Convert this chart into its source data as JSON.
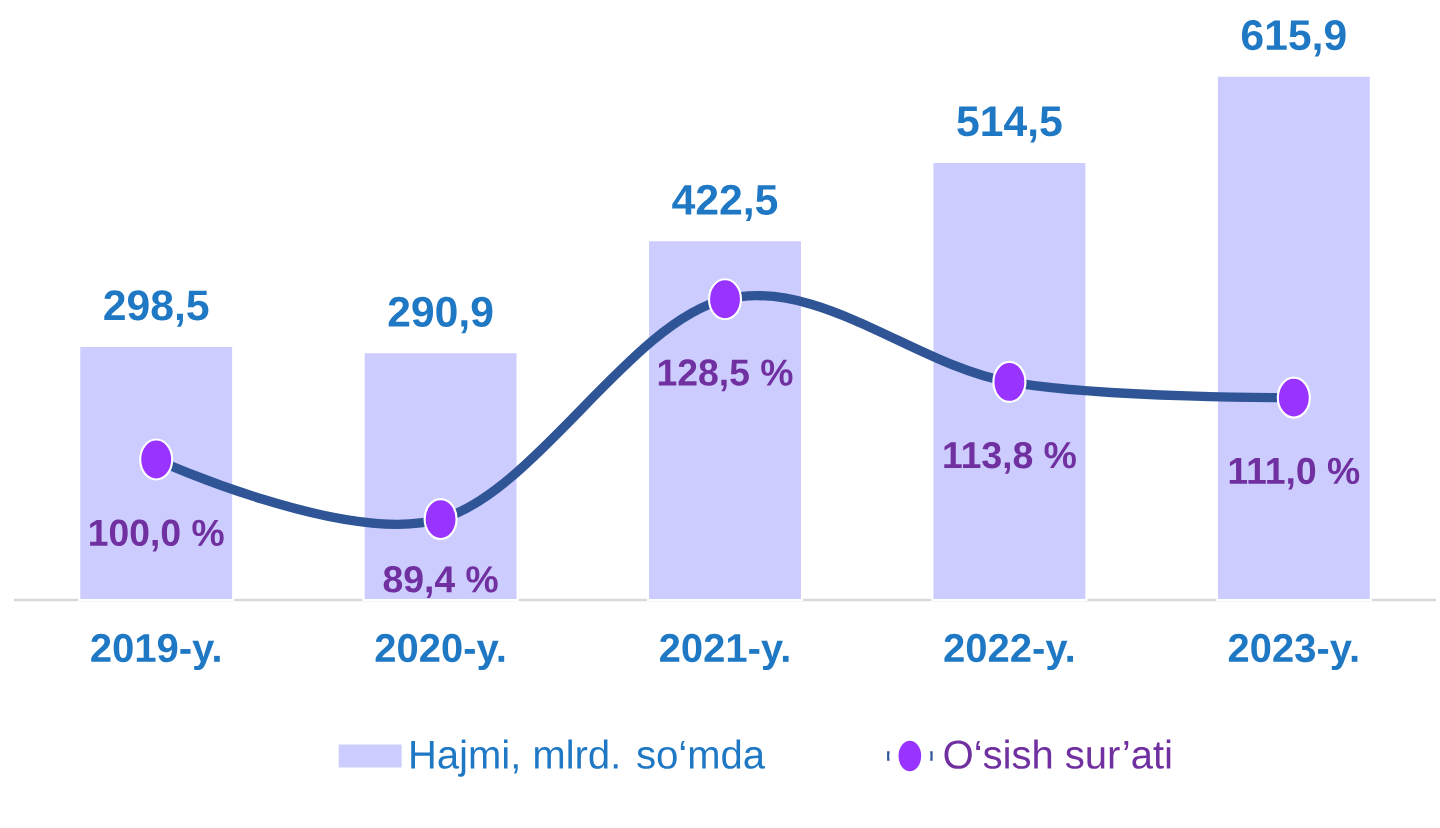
{
  "chart_data": {
    "type": "bar",
    "categories": [
      "2019-y.",
      "2020-y.",
      "2021-y.",
      "2022-y.",
      "2023-y."
    ],
    "series": [
      {
        "name": "Hajmi, mlrd. so‘mda",
        "color": "#ccccff",
        "values": [
          298.5,
          290.9,
          422.5,
          514.5,
          615.9
        ],
        "value_labels": [
          "298,5",
          "290,9",
          "422,5",
          "514,5",
          "615,9"
        ]
      },
      {
        "name": "O‘sish sur’ati",
        "type": "line",
        "axis": "y2",
        "color": "#2f5597",
        "colors": [
          "#9933ff",
          "#9933ff",
          "#9933ff",
          "#9933ff",
          "#9933ff"
        ],
        "values": [
          100.0,
          89.4,
          128.5,
          113.8,
          111.0
        ],
        "value_labels": [
          "100,0 %",
          "89,4 %",
          "128,5 %",
          "113,8 %",
          "111,0 %"
        ]
      }
    ],
    "tick_labels": "x",
    "legend": "bottom",
    "marker": "circle",
    "line_style": "solid"
  }
}
